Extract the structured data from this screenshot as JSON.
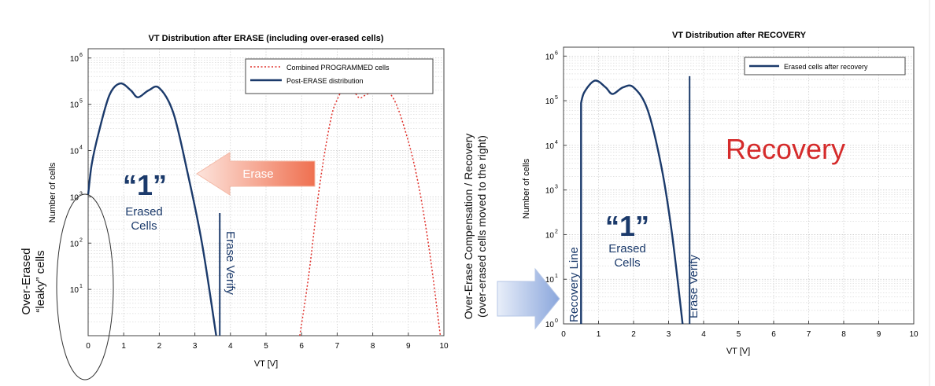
{
  "chart_data": [
    {
      "type": "line",
      "title": "VT Distribution after ERASE (including over-erased cells)",
      "xlabel": "VT [V]",
      "ylabel": "Number of cells",
      "x_ticks": [
        "0",
        "1",
        "2",
        "3",
        "4",
        "5",
        "6",
        "7",
        "8",
        "9",
        "10"
      ],
      "y_ticks": [
        {
          "base": "10",
          "exp": "1"
        },
        {
          "base": "10",
          "exp": "2"
        },
        {
          "base": "10",
          "exp": "3"
        },
        {
          "base": "10",
          "exp": "4"
        },
        {
          "base": "10",
          "exp": "5"
        },
        {
          "base": "10",
          "exp": "6"
        }
      ],
      "xlim": [
        0,
        10
      ],
      "ylim_log10": [
        0,
        6.2
      ],
      "grid": true,
      "legend": [
        "Combined PROGRAMMED cells",
        "Post-ERASE distribution"
      ],
      "series": [
        {
          "name": "Combined PROGRAMMED cells",
          "style": "dotted",
          "color": "#e0302a",
          "points": [
            [
              5.95,
              0
            ],
            [
              6.2,
              1.3
            ],
            [
              6.5,
              3.2
            ],
            [
              6.8,
              4.6
            ],
            [
              7.0,
              5.1
            ],
            [
              7.3,
              5.45
            ],
            [
              7.6,
              5.15
            ],
            [
              7.8,
              5.2
            ],
            [
              8.2,
              5.35
            ],
            [
              8.6,
              5.1
            ],
            [
              9.0,
              4.2
            ],
            [
              9.3,
              3.2
            ],
            [
              9.6,
              1.8
            ],
            [
              9.9,
              0
            ]
          ]
        },
        {
          "name": "Post-ERASE distribution",
          "style": "solid",
          "color": "#1b3a6b",
          "points": [
            [
              0,
              3.05
            ],
            [
              0.1,
              3.7
            ],
            [
              0.3,
              4.4
            ],
            [
              0.6,
              5.2
            ],
            [
              0.9,
              5.45
            ],
            [
              1.2,
              5.3
            ],
            [
              1.4,
              5.15
            ],
            [
              1.7,
              5.3
            ],
            [
              2.0,
              5.35
            ],
            [
              2.4,
              4.8
            ],
            [
              2.8,
              3.5
            ],
            [
              3.2,
              2.0
            ],
            [
              3.6,
              0
            ]
          ]
        }
      ],
      "annotations": {
        "erase_arrow_label": "Erase",
        "state_label": "“1”",
        "state_sub_1": "Erased",
        "state_sub_2": "Cells",
        "verify_label": "Erase Verify",
        "verify_x": 3.7,
        "verify_top_log10": 2.65,
        "left_callout_1": "Over-Erased",
        "left_callout_2": "“leaky” cells"
      }
    },
    {
      "type": "line",
      "title": "VT Distribution after RECOVERY",
      "xlabel": "VT [V]",
      "ylabel": "Number of cells",
      "x_ticks": [
        "0",
        "1",
        "2",
        "3",
        "4",
        "5",
        "6",
        "7",
        "8",
        "9",
        "10"
      ],
      "y_ticks": [
        {
          "base": "10",
          "exp": "0"
        },
        {
          "base": "10",
          "exp": "1"
        },
        {
          "base": "10",
          "exp": "2"
        },
        {
          "base": "10",
          "exp": "3"
        },
        {
          "base": "10",
          "exp": "4"
        },
        {
          "base": "10",
          "exp": "5"
        },
        {
          "base": "10",
          "exp": "6"
        }
      ],
      "xlim": [
        0,
        10
      ],
      "ylim_log10": [
        0,
        6.2
      ],
      "grid": true,
      "legend": [
        "Erased cells after recovery"
      ],
      "series": [
        {
          "name": "Erased cells after recovery",
          "style": "solid",
          "color": "#1b3a6b",
          "points": [
            [
              0.5,
              0
            ],
            [
              0.5,
              4.95
            ],
            [
              0.6,
              5.2
            ],
            [
              0.9,
              5.45
            ],
            [
              1.2,
              5.3
            ],
            [
              1.4,
              5.15
            ],
            [
              1.7,
              5.3
            ],
            [
              2.0,
              5.3
            ],
            [
              2.4,
              4.8
            ],
            [
              2.8,
              3.5
            ],
            [
              3.1,
              2.0
            ],
            [
              3.4,
              0
            ]
          ]
        }
      ],
      "annotations": {
        "big_label": "Recovery",
        "state_label": "“1”",
        "state_sub_1": "Erased",
        "state_sub_2": "Cells",
        "recovery_line_label": "Recovery Line",
        "recovery_x": 0.5,
        "verify_label": "Erase Verify",
        "verify_x": 3.6,
        "verify_top_log10": 5.55,
        "side_caption_1": "Over-Erase Compensation / Recovery",
        "side_caption_2": "(over-erased cells moved to the right)"
      }
    }
  ],
  "colors": {
    "curve": "#1b3a6b",
    "programmed": "#e0302a",
    "arrow_start": "#ffffff",
    "arrow_end": "#f0785a",
    "recovery_text": "#d52b2b",
    "grid": "#c8c8c8"
  }
}
